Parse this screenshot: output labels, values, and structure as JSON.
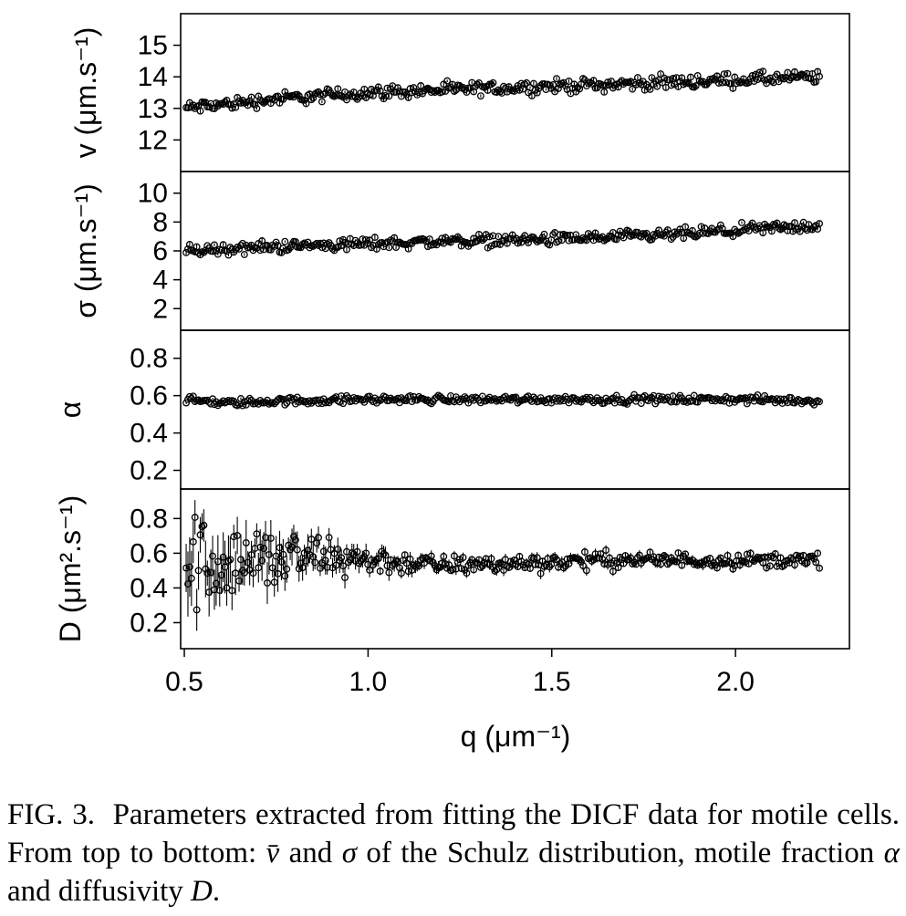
{
  "chart_data": [
    {
      "type": "scatter",
      "panel": "v",
      "ylabel": "v (μm.s⁻¹)",
      "ylim": [
        11.0,
        16.0
      ],
      "yticks": [
        12,
        13,
        14,
        15
      ],
      "xlim": [
        0.49,
        2.31
      ],
      "error_bars": true,
      "trend": {
        "x": [
          0.5,
          0.75,
          1.0,
          1.25,
          1.5,
          1.75,
          2.0,
          2.25
        ],
        "y": [
          13.0,
          13.3,
          13.5,
          13.6,
          13.7,
          13.8,
          13.9,
          14.0
        ]
      },
      "noise": 0.22
    },
    {
      "type": "scatter",
      "panel": "sigma",
      "ylabel": "σ (μm.s⁻¹)",
      "ylim": [
        0.5,
        11.5
      ],
      "yticks": [
        2,
        4,
        6,
        8,
        10
      ],
      "xlim": [
        0.49,
        2.31
      ],
      "error_bars": true,
      "trend": {
        "x": [
          0.5,
          0.75,
          1.0,
          1.25,
          1.5,
          1.75,
          2.0,
          2.25
        ],
        "y": [
          6.0,
          6.3,
          6.5,
          6.7,
          6.8,
          7.0,
          7.4,
          7.8
        ]
      },
      "noise": 0.45
    },
    {
      "type": "scatter",
      "panel": "alpha",
      "ylabel": "α",
      "ylim": [
        0.1,
        0.95
      ],
      "yticks": [
        0.2,
        0.4,
        0.6,
        0.8
      ],
      "xlim": [
        0.49,
        2.31
      ],
      "error_bars": true,
      "trend": {
        "x": [
          0.5,
          0.6,
          0.75,
          1.0,
          1.5,
          2.0,
          2.25
        ],
        "y": [
          0.58,
          0.56,
          0.57,
          0.58,
          0.58,
          0.58,
          0.57
        ]
      },
      "noise": 0.022
    },
    {
      "type": "scatter",
      "panel": "D",
      "ylabel": "D (μm².s⁻¹)",
      "xlabel": "q (μm⁻¹)",
      "ylim": [
        0.05,
        0.97
      ],
      "yticks": [
        0.2,
        0.4,
        0.6,
        0.8
      ],
      "xlim": [
        0.49,
        2.31
      ],
      "xticks": [
        0.5,
        1.0,
        1.5,
        2.0
      ],
      "error_bars": true,
      "trend": {
        "x": [
          0.5,
          0.7,
          0.9,
          1.0,
          1.2,
          1.4,
          1.6,
          1.8,
          2.0,
          2.25
        ],
        "y": [
          0.55,
          0.56,
          0.58,
          0.56,
          0.53,
          0.54,
          0.56,
          0.56,
          0.56,
          0.56
        ]
      },
      "noise_profile": {
        "x": [
          0.5,
          0.6,
          0.8,
          1.0,
          1.2,
          2.25
        ],
        "s": [
          0.22,
          0.18,
          0.12,
          0.06,
          0.04,
          0.03
        ]
      }
    }
  ],
  "figure": {
    "xlabel": "q (μm⁻¹)",
    "xtick_labels": [
      "0.5",
      "1.0",
      "1.5",
      "2.0"
    ]
  },
  "caption": {
    "label": "FIG. 3.",
    "text_1": "Parameters extracted from fitting the DICF data for motile cells. From top to bottom: ",
    "v_symbol": "v̄",
    "text_2": " and ",
    "sigma_symbol": "σ",
    "text_3": " of the Schulz distribution, motile fraction ",
    "alpha_symbol": "α",
    "text_4": " and diffusivity ",
    "d_symbol": "D",
    "text_5": "."
  }
}
